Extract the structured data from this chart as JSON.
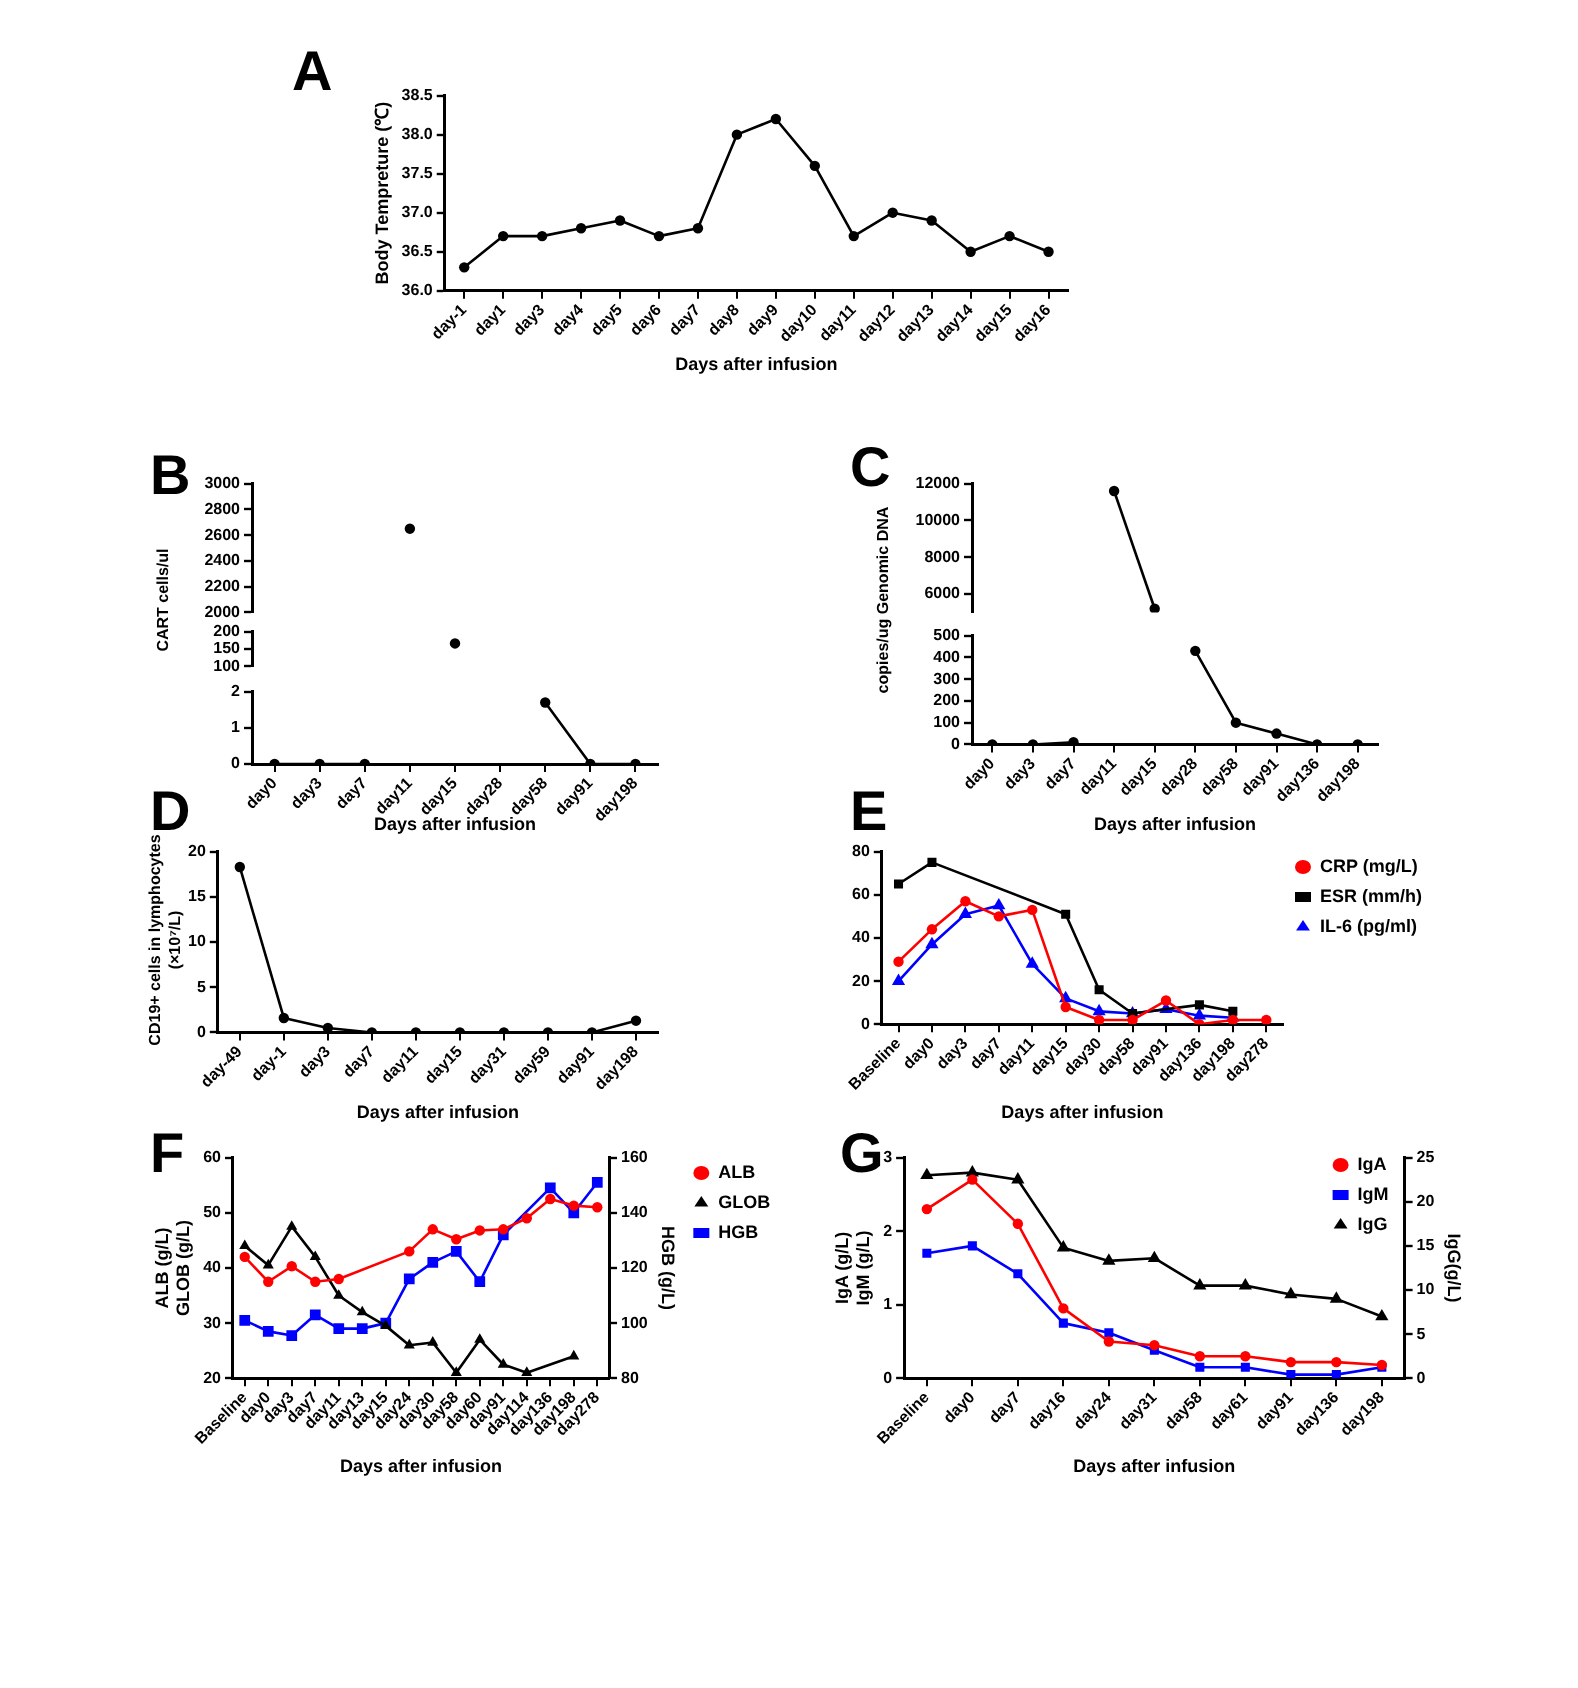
{
  "chart_data": [
    {
      "type": "line",
      "title": "A",
      "xlabel": "Days after infusion",
      "ylabel": "Body Tempreture (℃)",
      "categories": [
        "day-1",
        "day1",
        "day3",
        "day4",
        "day5",
        "day6",
        "day7",
        "day8",
        "day9",
        "day10",
        "day11",
        "day12",
        "day13",
        "day14",
        "day15",
        "day16"
      ],
      "values": [
        36.3,
        36.7,
        36.7,
        36.8,
        36.9,
        36.7,
        36.8,
        38.0,
        38.2,
        37.6,
        36.7,
        37.0,
        36.9,
        36.5,
        36.7,
        36.5
      ],
      "color": "#000000",
      "marker": "circle",
      "ylim": [
        36,
        38.5
      ],
      "yticks": [
        {
          "value": 36,
          "label": "36.0"
        },
        36.5,
        {
          "value": 37,
          "label": "37.0"
        },
        37.5,
        {
          "value": 38,
          "label": "38.0"
        },
        38.5
      ]
    },
    {
      "type": "line",
      "title": "B",
      "categories": [
        "day0",
        "day3",
        "day7",
        "day11",
        "day15",
        "day28",
        "day58",
        "day91",
        "day198"
      ],
      "values": [
        null,
        null,
        null,
        2650,
        null,
        null,
        null,
        null,
        null
      ],
      "color": "#000000",
      "marker": "circle",
      "ylim": [
        2000,
        3000
      ],
      "yticks": [
        2000,
        2200,
        2400,
        2600,
        2800,
        3000
      ],
      "tick_labels": "y"
    },
    {
      "type": "line",
      "categories": [
        "day0",
        "day3",
        "day7",
        "day11",
        "day15",
        "day28",
        "day58",
        "day91",
        "day198"
      ],
      "values": [
        null,
        null,
        null,
        null,
        166,
        null,
        null,
        null,
        null
      ],
      "color": "#000000",
      "marker": "circle",
      "ylim": [
        100,
        200
      ],
      "yticks": [
        100,
        150,
        200
      ],
      "tick_labels": "y"
    },
    {
      "type": "line",
      "xlabel": "Days after infusion",
      "ylabel": "CART cells/ul",
      "categories": [
        "day0",
        "day3",
        "day7",
        "day11",
        "day15",
        "day28",
        "day58",
        "day91",
        "day198"
      ],
      "values": [
        0,
        0,
        0,
        null,
        null,
        null,
        1.7,
        0,
        0
      ],
      "color": "#000000",
      "marker": "circle",
      "ylim": [
        0,
        2
      ],
      "yticks": [
        0,
        1,
        2
      ]
    },
    {
      "type": "line",
      "title": "C",
      "categories": [
        "day0",
        "day3",
        "day7",
        "day11",
        "day15",
        "day28",
        "day58",
        "day91",
        "day136",
        "day198"
      ],
      "values": [
        null,
        null,
        null,
        11600,
        5200,
        null,
        null,
        null,
        null,
        null
      ],
      "color": "#000000",
      "marker": "circle",
      "ylim": [
        5000,
        12000
      ],
      "yticks": [
        6000,
        8000,
        10000,
        12000
      ],
      "tick_labels": "y"
    },
    {
      "type": "line",
      "xlabel": "Days after infusion",
      "ylabel": "copies/ug Genomic DNA",
      "categories": [
        "day0",
        "day3",
        "day7",
        "day11",
        "day15",
        "day28",
        "day58",
        "day91",
        "day136",
        "day198"
      ],
      "values": [
        0,
        0,
        10,
        null,
        null,
        430,
        100,
        50,
        0,
        0
      ],
      "color": "#000000",
      "marker": "circle",
      "ylim": [
        0,
        500
      ],
      "yticks": [
        0,
        100,
        200,
        300,
        400,
        500
      ]
    },
    {
      "type": "line",
      "title": "D",
      "xlabel": "Days after infusion",
      "ylabel": "CD19+ cells in lymphocytes\n(×10⁷/L)",
      "categories": [
        "day-49",
        "day-1",
        "day3",
        "day7",
        "day11",
        "day15",
        "day31",
        "day59",
        "day91",
        "day198"
      ],
      "values": [
        18.3,
        1.6,
        0.5,
        0,
        0,
        0,
        0,
        0,
        0,
        1.3
      ],
      "color": "#000000",
      "marker": "circle",
      "ylim": [
        0,
        20
      ],
      "yticks": [
        0,
        5,
        10,
        15,
        20
      ]
    },
    {
      "type": "line",
      "title": "E",
      "xlabel": "Days after infusion",
      "categories": [
        "Baseline",
        "day0",
        "day3",
        "day7",
        "day11",
        "day15",
        "day30",
        "day58",
        "day91",
        "day136",
        "day198",
        "day278"
      ],
      "legend": "top right",
      "ylim": [
        0,
        80
      ],
      "yticks": [
        0,
        20,
        40,
        60,
        80
      ],
      "series": [
        {
          "name": "CRP (mg/L)",
          "color": "#ff0000",
          "marker": "circle",
          "values": [
            29,
            44,
            57,
            50,
            53,
            8,
            2,
            2,
            11,
            0,
            2,
            2
          ]
        },
        {
          "name": "ESR (mm/h)",
          "color": "#000000",
          "marker": "square",
          "x": [
            "Baseline",
            "day0",
            "day15",
            "day30",
            "day58",
            "day136",
            "day198"
          ],
          "values": [
            65,
            75,
            51,
            16,
            5,
            9,
            6
          ]
        },
        {
          "name": "IL-6 (pg/ml)",
          "color": "#0000ff",
          "marker": "triangle",
          "x": [
            "Baseline",
            "day0",
            "day3",
            "day7",
            "day11",
            "day15",
            "day30",
            "day58",
            "day91",
            "day136",
            "day198"
          ],
          "values": [
            20,
            37,
            51,
            55,
            28,
            12,
            6,
            5,
            7,
            4,
            3
          ]
        }
      ]
    },
    {
      "type": "line",
      "title": "F",
      "xlabel": "Days after infusion",
      "ylabel": "ALB (g/L)\nGLOB (g/L)",
      "y2label": "HGB (g/L)",
      "categories": [
        "Baseline",
        "day0",
        "day3",
        "day7",
        "day11",
        "day13",
        "day15",
        "day24",
        "day30",
        "day58",
        "day60",
        "day91",
        "day114",
        "day136",
        "day198",
        "day278"
      ],
      "legend": "top right",
      "ylim": [
        20,
        60
      ],
      "yticks": [
        20,
        30,
        40,
        50,
        60
      ],
      "y2lim": [
        80,
        160
      ],
      "y2ticks": [
        80,
        100,
        120,
        140,
        160
      ],
      "series": [
        {
          "name": "ALB",
          "color": "#ff0000",
          "marker": "circle",
          "x": [
            "Baseline",
            "day0",
            "day3",
            "day7",
            "day11",
            "day24",
            "day30",
            "day58",
            "day60",
            "day91",
            "day114",
            "day136",
            "day198",
            "day278"
          ],
          "values": [
            42,
            37.5,
            40.3,
            37.5,
            38,
            43,
            47,
            45.2,
            46.8,
            47,
            49,
            52.5,
            51.3,
            51
          ]
        },
        {
          "name": "GLOB",
          "color": "#000000",
          "marker": "triangle",
          "x": [
            "Baseline",
            "day0",
            "day3",
            "day7",
            "day11",
            "day13",
            "day15",
            "day24",
            "day30",
            "day58",
            "day60",
            "day91",
            "day114",
            "day198"
          ],
          "values": [
            44,
            40.5,
            47.5,
            42,
            35,
            32,
            29.5,
            26,
            26.5,
            21,
            27,
            22.5,
            21,
            24
          ]
        },
        {
          "name": "HGB",
          "color": "#0000ff",
          "marker": "square",
          "axis": "y2",
          "x": [
            "Baseline",
            "day0",
            "day3",
            "day7",
            "day11",
            "day13",
            "day15",
            "day24",
            "day30",
            "day58",
            "day60",
            "day91",
            "day136",
            "day198",
            "day278"
          ],
          "values": [
            101,
            97,
            95.5,
            103,
            98,
            98,
            100,
            116,
            122,
            126,
            115,
            132,
            149,
            140,
            151
          ]
        }
      ]
    },
    {
      "type": "line",
      "title": "G",
      "xlabel": "Days after infusion",
      "ylabel": "IgA (g/L)\nIgM (g/L)",
      "y2label": "IgG(g/L)",
      "categories": [
        "Baseline",
        "day0",
        "day7",
        "day16",
        "day24",
        "day31",
        "day58",
        "day61",
        "day91",
        "day136",
        "day198"
      ],
      "legend": "top right",
      "ylim": [
        0,
        3
      ],
      "yticks": [
        0,
        1,
        2,
        3
      ],
      "y2lim": [
        0,
        25
      ],
      "y2ticks": [
        0,
        5,
        10,
        15,
        20,
        25
      ],
      "series": [
        {
          "name": "IgA",
          "color": "#ff0000",
          "marker": "circle",
          "values": [
            2.3,
            2.7,
            2.1,
            0.95,
            0.5,
            0.45,
            0.3,
            0.3,
            0.22,
            0.22,
            0.18
          ]
        },
        {
          "name": "IgM",
          "color": "#0000ff",
          "marker": "square",
          "values": [
            1.7,
            1.8,
            1.42,
            0.75,
            0.62,
            0.38,
            0.15,
            0.15,
            0.05,
            0.05,
            0.15
          ]
        },
        {
          "name": "IgG",
          "color": "#000000",
          "marker": "triangle",
          "axis": "y2",
          "values": [
            23,
            23.3,
            22.5,
            14.8,
            13.3,
            13.6,
            10.5,
            10.5,
            9.5,
            9,
            7
          ]
        }
      ]
    }
  ]
}
